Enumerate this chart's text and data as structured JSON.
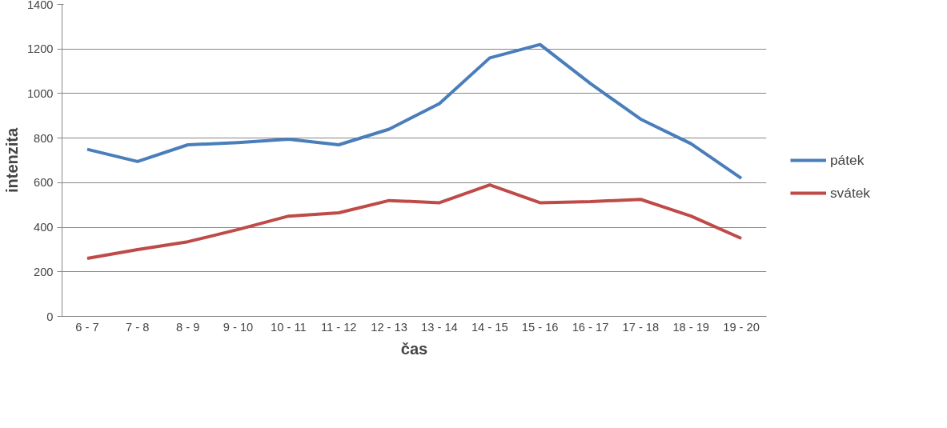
{
  "chart_data": {
    "type": "line",
    "xlabel": "čas",
    "ylabel": "intenzita",
    "categories": [
      "6 - 7",
      "7 - 8",
      "8 - 9",
      "9 - 10",
      "10 - 11",
      "11 - 12",
      "12 - 13",
      "13 - 14",
      "14 - 15",
      "15 - 16",
      "16 - 17",
      "17 - 18",
      "18 - 19",
      "19 - 20"
    ],
    "series": [
      {
        "name": "pátek",
        "color": "#4a7ebb",
        "values": [
          750,
          695,
          770,
          780,
          795,
          770,
          840,
          955,
          1160,
          1220,
          1045,
          885,
          775,
          620
        ]
      },
      {
        "name": "svátek",
        "color": "#be4b48",
        "values": [
          260,
          300,
          335,
          390,
          450,
          465,
          520,
          510,
          590,
          510,
          515,
          525,
          450,
          350
        ]
      }
    ],
    "ylim": [
      0,
      1400
    ],
    "yticks": [
      0,
      200,
      400,
      600,
      800,
      1000,
      1200,
      1400
    ],
    "grid": "y",
    "legend": "right",
    "marker": "none",
    "line_style": "solid"
  }
}
